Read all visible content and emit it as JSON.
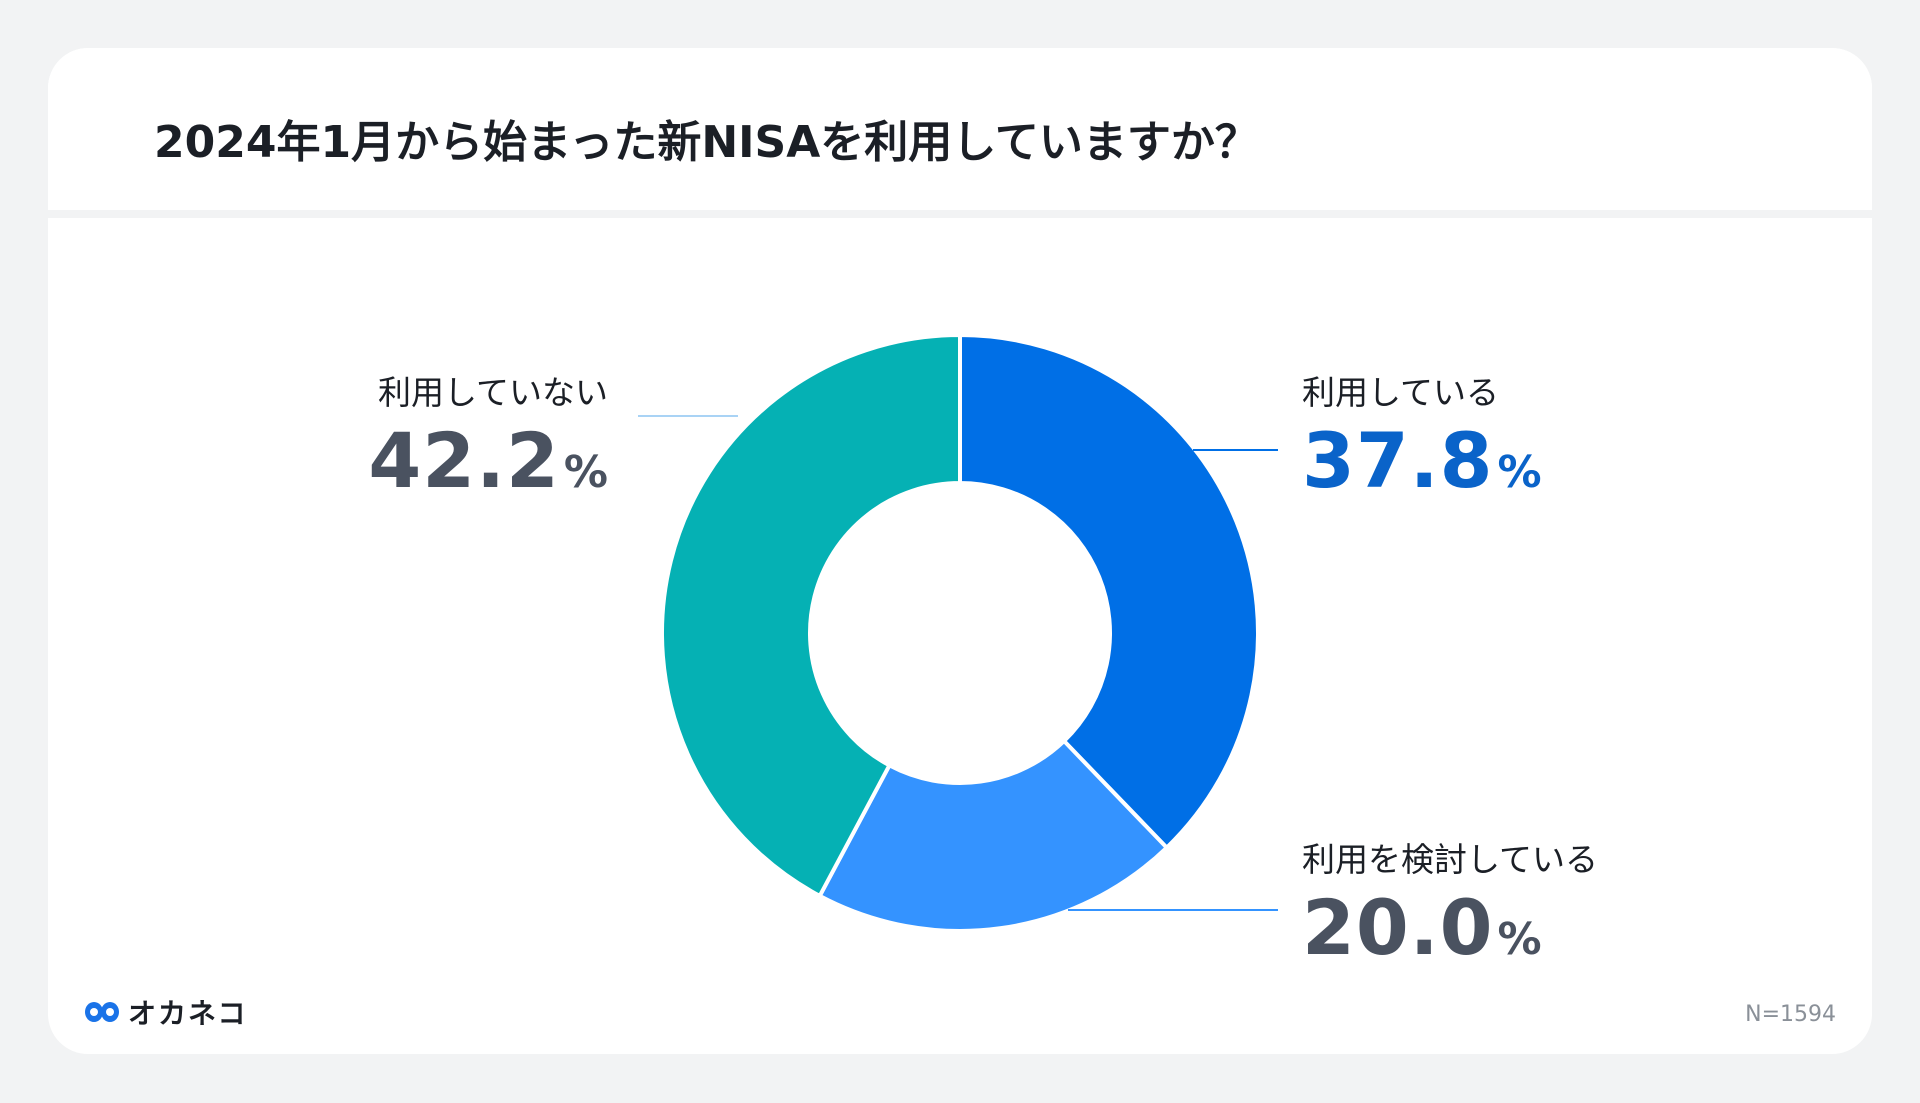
{
  "title": "2024年1月から始まった新NISAを利用していますか？",
  "sample_size": "N=1594",
  "logo": {
    "text": "オカネコ",
    "icon": "okaneko-logo-icon"
  },
  "colors": {
    "using": "#006fe6",
    "considering": "#3493ff",
    "not_using": "#05b1b4",
    "using_value_text": "#0a63c9",
    "neutral_value_text": "#4a5260",
    "leader_not_using": "#a9d3f5"
  },
  "labels": {
    "using": {
      "name": "利用している",
      "value": "37.8",
      "unit": "%"
    },
    "considering": {
      "name": "利用を検討している",
      "value": "20.0",
      "unit": "%"
    },
    "not_using": {
      "name": "利用していない",
      "value": "42.2",
      "unit": "%"
    }
  },
  "chart_data": {
    "type": "pie",
    "variant": "donut",
    "title": "2024年1月から始まった新NISAを利用していますか？",
    "slices": [
      {
        "name": "利用している",
        "value": 37.8,
        "color": "#006fe6"
      },
      {
        "name": "利用を検討している",
        "value": 20.0,
        "color": "#3493ff"
      },
      {
        "name": "利用していない",
        "value": 42.2,
        "color": "#05b1b4"
      }
    ],
    "unit": "%",
    "start_angle": "12 o'clock, clockwise",
    "n": 1594
  }
}
